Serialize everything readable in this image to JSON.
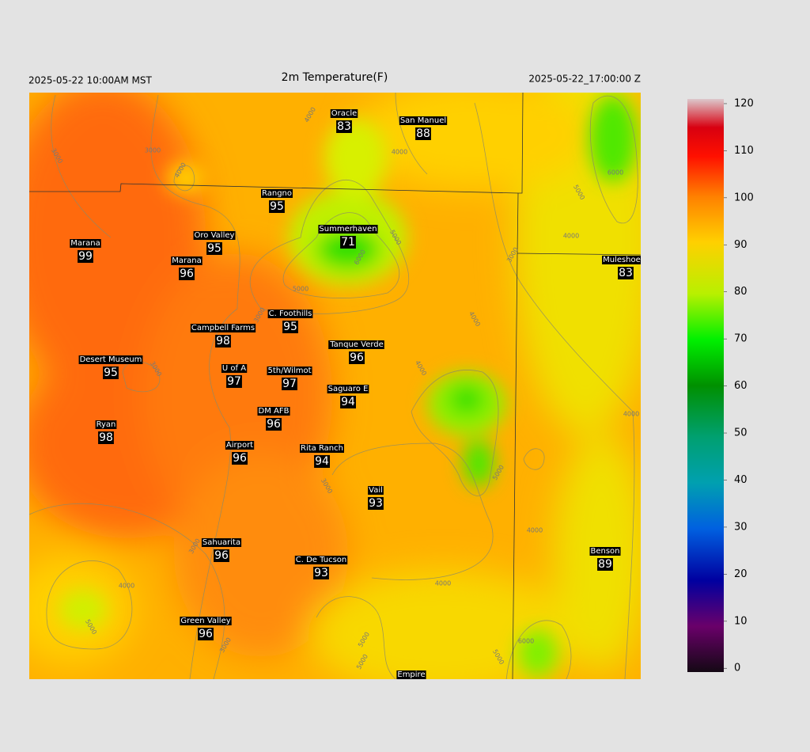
{
  "header": {
    "left": "2025-05-22 10:00AM MST",
    "title": "2m Temperature(F)",
    "right": "2025-05-22_17:00:00 Z"
  },
  "stations": [
    {
      "name": "Oracle",
      "value": 83
    },
    {
      "name": "San Manuel",
      "value": 88
    },
    {
      "name": "Rangno",
      "value": 95
    },
    {
      "name": "Summerhaven",
      "value": 71
    },
    {
      "name": "Marana",
      "value": 99
    },
    {
      "name": "Oro Valley",
      "value": 95
    },
    {
      "name": "Marana",
      "value": 96
    },
    {
      "name": "Muleshoe R",
      "value": 83
    },
    {
      "name": "C. Foothills",
      "value": 95
    },
    {
      "name": "Campbell Farms",
      "value": 98
    },
    {
      "name": "Tanque Verde",
      "value": 96
    },
    {
      "name": "Desert Museum",
      "value": 95
    },
    {
      "name": "U of A",
      "value": 97
    },
    {
      "name": "5th/Wilmot",
      "value": 97
    },
    {
      "name": "Saguaro E",
      "value": 94
    },
    {
      "name": "DM AFB",
      "value": 96
    },
    {
      "name": "Ryan",
      "value": 98
    },
    {
      "name": "Airport",
      "value": 96
    },
    {
      "name": "Rita Ranch",
      "value": 94
    },
    {
      "name": "Vail",
      "value": 93
    },
    {
      "name": "Sahuarita",
      "value": 96
    },
    {
      "name": "C. De Tucson",
      "value": 93
    },
    {
      "name": "Benson",
      "value": 89
    },
    {
      "name": "Green Valley",
      "value": 96
    },
    {
      "name": "Empire"
    }
  ],
  "contour_labels": [
    "4000",
    "3000",
    "3000",
    "4000",
    "4000",
    "5000",
    "6000",
    "5000",
    "4000",
    "3000",
    "6000",
    "5000",
    "3000",
    "4000",
    "4000",
    "5000",
    "4000",
    "3000",
    "5000",
    "4000",
    "3000",
    "3000",
    "4000",
    "5000",
    "3000",
    "4000",
    "5000",
    "5000",
    "6000"
  ],
  "colorbar": {
    "lim": [
      -0.8,
      121
    ],
    "ticks": [
      0,
      10,
      20,
      30,
      40,
      50,
      60,
      70,
      80,
      90,
      100,
      110,
      120
    ]
  }
}
